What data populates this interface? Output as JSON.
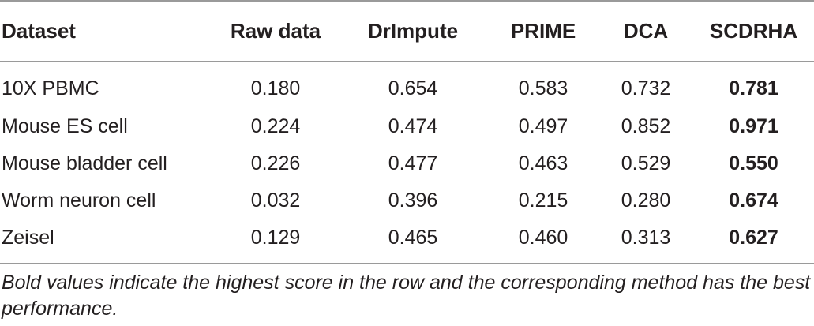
{
  "table": {
    "headers": [
      "Dataset",
      "Raw data",
      "DrImpute",
      "PRIME",
      "DCA",
      "SCDRHA"
    ],
    "rows": [
      {
        "dataset": "10X PBMC",
        "values": [
          "0.180",
          "0.654",
          "0.583",
          "0.732",
          "0.781"
        ]
      },
      {
        "dataset": "Mouse ES cell",
        "values": [
          "0.224",
          "0.474",
          "0.497",
          "0.852",
          "0.971"
        ]
      },
      {
        "dataset": "Mouse bladder cell",
        "values": [
          "0.226",
          "0.477",
          "0.463",
          "0.529",
          "0.550"
        ]
      },
      {
        "dataset": "Worm neuron cell",
        "values": [
          "0.032",
          "0.396",
          "0.215",
          "0.280",
          "0.674"
        ]
      },
      {
        "dataset": "Zeisel",
        "values": [
          "0.129",
          "0.465",
          "0.460",
          "0.313",
          "0.627"
        ]
      }
    ]
  },
  "footnote": "Bold values indicate the highest score in the row and the corresponding method has the best performance."
}
